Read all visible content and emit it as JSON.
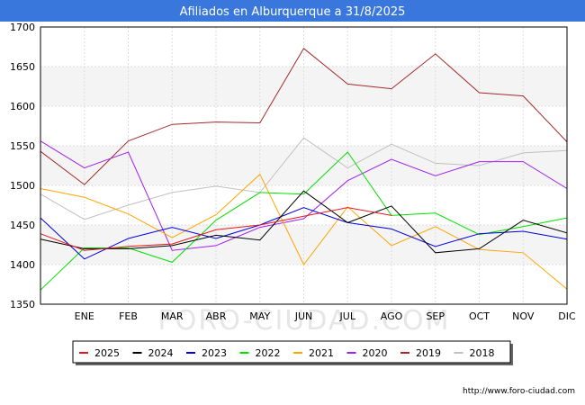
{
  "header": {
    "title": "Afiliados en Alburquerque a 31/8/2025",
    "bg_color": "#3a77dc"
  },
  "footer": {
    "source": "http://www.foro-ciudad.com"
  },
  "watermark": "FORO-CIUDAD.COM",
  "chart_data": {
    "type": "line",
    "title": "Afiliados en Alburquerque a 31/8/2025",
    "categories": [
      "",
      "ENE",
      "FEB",
      "MAR",
      "ABR",
      "MAY",
      "JUN",
      "JUL",
      "AGO",
      "SEP",
      "OCT",
      "NOV",
      "DIC"
    ],
    "ylim": [
      1350,
      1700
    ],
    "yticks": [
      1350,
      1400,
      1450,
      1500,
      1550,
      1600,
      1650,
      1700
    ],
    "grid": true,
    "legend_position": "bottom",
    "series": [
      {
        "name": "2025",
        "color": "#e8171d",
        "values": [
          1439,
          1418,
          1423,
          1426,
          1444,
          1450,
          1461,
          1472,
          1462,
          null,
          null,
          null,
          null
        ]
      },
      {
        "name": "2024",
        "color": "#000000",
        "values": [
          1432,
          1420,
          1420,
          1424,
          1437,
          1431,
          1493,
          1453,
          1474,
          1415,
          1420,
          1456,
          1440
        ]
      },
      {
        "name": "2023",
        "color": "#0000e0",
        "values": [
          1459,
          1407,
          1433,
          1447,
          1433,
          1450,
          1472,
          1453,
          1445,
          1423,
          1439,
          1442,
          1432
        ]
      },
      {
        "name": "2022",
        "color": "#00e000",
        "values": [
          1368,
          1421,
          1421,
          1403,
          1456,
          1491,
          1489,
          1542,
          1462,
          1465,
          1438,
          1448,
          1459
        ]
      },
      {
        "name": "2021",
        "color": "#ffa500",
        "values": [
          1496,
          1485,
          1464,
          1434,
          1463,
          1514,
          1400,
          1473,
          1424,
          1448,
          1419,
          1415,
          1369
        ]
      },
      {
        "name": "2020",
        "color": "#a020f0",
        "values": [
          1556,
          1522,
          1542,
          1418,
          1424,
          1447,
          1458,
          1506,
          1533,
          1512,
          1530,
          1530,
          1496
        ]
      },
      {
        "name": "2019",
        "color": "#a52a2a",
        "values": [
          1543,
          1501,
          1556,
          1577,
          1580,
          1579,
          1673,
          1628,
          1622,
          1666,
          1617,
          1613,
          1555
        ]
      },
      {
        "name": "2018",
        "color": "#c0c0c0",
        "values": [
          1489,
          1457,
          1475,
          1491,
          1499,
          1491,
          1560,
          1522,
          1552,
          1528,
          1525,
          1541,
          1544
        ]
      }
    ]
  }
}
